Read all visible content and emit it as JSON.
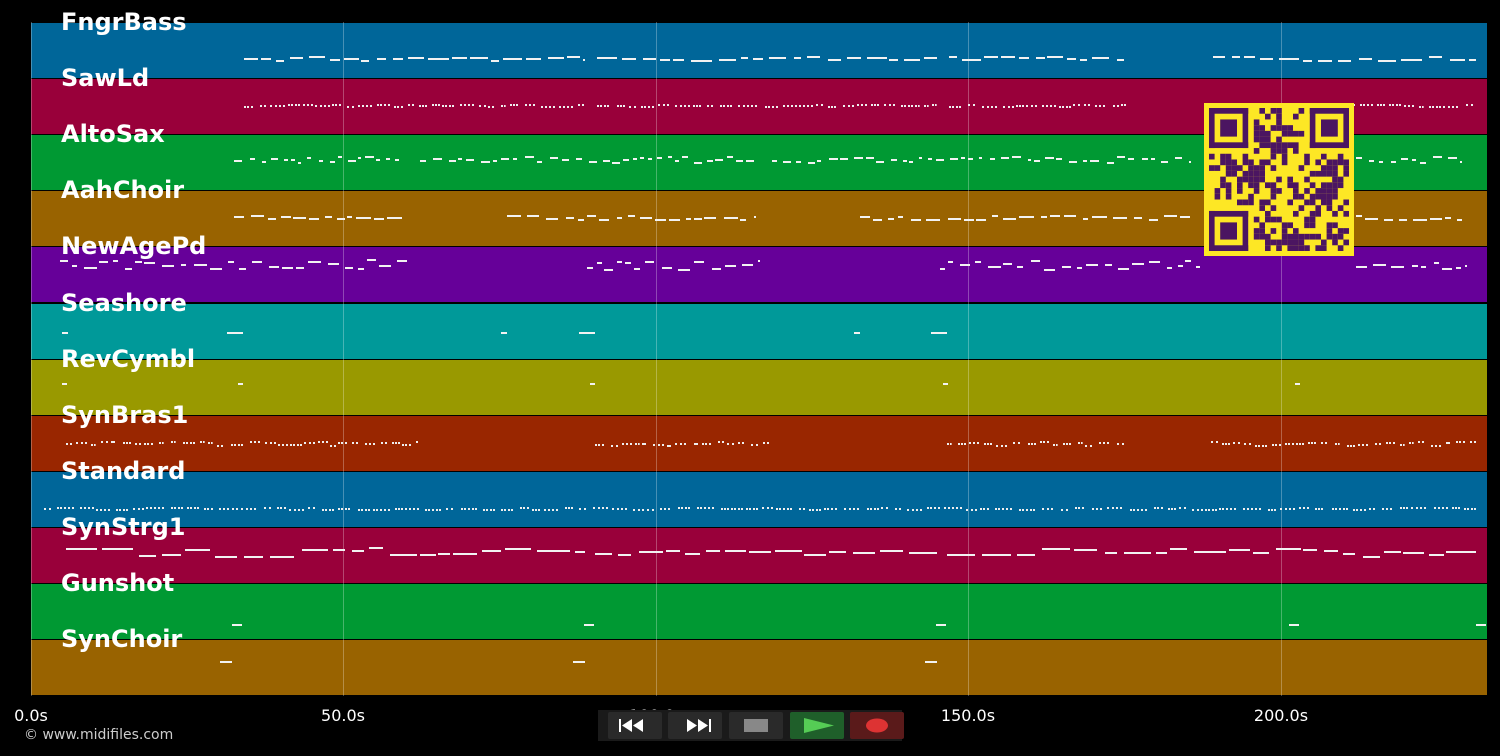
{
  "tracks": [
    {
      "name": "FngrBass",
      "color": "#006699"
    },
    {
      "name": "SawLd",
      "color": "#99003a"
    },
    {
      "name": "AltoSax",
      "color": "#009933"
    },
    {
      "name": "AahChoir",
      "color": "#996300"
    },
    {
      "name": "NewAgePd",
      "color": "#660099"
    },
    {
      "name": "Seashore",
      "color": "#009999"
    },
    {
      "name": "RevCymbl",
      "color": "#999900"
    },
    {
      "name": "SynBras1",
      "color": "#992600"
    },
    {
      "name": "Standard",
      "color": "#006699"
    },
    {
      "name": "SynStrg1",
      "color": "#99003a"
    },
    {
      "name": "Gunshot",
      "color": "#009933"
    },
    {
      "name": "SynChoir",
      "color": "#996300"
    }
  ],
  "time_axis": {
    "max_seconds": 233,
    "ticks": [
      {
        "value": 0,
        "label": "0.0s"
      },
      {
        "value": 50,
        "label": "50.0s"
      },
      {
        "value": 100,
        "label": "100.0s"
      },
      {
        "value": 150,
        "label": "150.0s"
      },
      {
        "value": 200,
        "label": "200.0s"
      }
    ]
  },
  "footer": {
    "copyright": "© www.midifiles.com"
  },
  "transport": {
    "buttons": [
      {
        "name": "rewind-button",
        "icon": "rewind-icon"
      },
      {
        "name": "fast-forward-button",
        "icon": "fast-forward-icon"
      },
      {
        "name": "stop-button",
        "icon": "stop-icon"
      },
      {
        "name": "play-button",
        "icon": "play-icon"
      },
      {
        "name": "record-button",
        "icon": "record-icon"
      }
    ],
    "colors": {
      "stop": "#888888",
      "play": "#55cc55",
      "record": "#dd3333",
      "button_bg": "#2a2a2a",
      "play_bg": "#1f5f2a",
      "record_bg": "#5a1a1a"
    }
  },
  "qr_code": {
    "icon": "qr-code-icon",
    "fg": "#4b1561",
    "bg": "#fde725"
  }
}
